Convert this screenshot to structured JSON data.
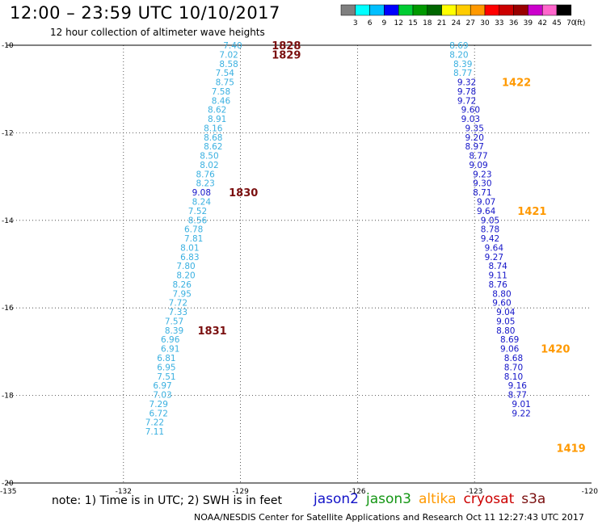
{
  "title": "12:00 – 23:59 UTC 10/10/2017",
  "subtitle": "12 hour collection of altimeter wave heights",
  "note": "note: 1) Time is in UTC; 2) SWH is in feet",
  "credit": "NOAA/NESDIS Center for Satellite Applications and Research    Oct 11 12:27:43 UTC 2017",
  "colorbar": {
    "unit": "(ft)",
    "labels": [
      "3",
      "6",
      "9",
      "12",
      "15",
      "18",
      "21",
      "24",
      "27",
      "30",
      "33",
      "36",
      "39",
      "42",
      "45",
      "70"
    ],
    "colors": [
      "#7f7f7f",
      "#00ffff",
      "#00bfff",
      "#0000ff",
      "#00cc33",
      "#009900",
      "#006600",
      "#ffff00",
      "#ffcc00",
      "#ff9900",
      "#ff0000",
      "#cc0000",
      "#990000",
      "#cc00cc",
      "#ff66cc",
      "#000000"
    ]
  },
  "legend": [
    {
      "label": "jason2",
      "color": "#1414c8"
    },
    {
      "label": "jason3",
      "color": "#149614"
    },
    {
      "label": "altika",
      "color": "#ff9900"
    },
    {
      "label": "cryosat",
      "color": "#cc0000"
    },
    {
      "label": "s3a",
      "color": "#7a0f0f"
    }
  ],
  "chart_data": {
    "type": "scatter",
    "title": "12:00 – 23:59 UTC 10/10/2017",
    "subtitle": "12 hour collection of altimeter wave heights",
    "xlim": [
      -135,
      -120
    ],
    "ylim": [
      -20,
      -10
    ],
    "x_ticks": [
      "-135",
      "-132",
      "-129",
      "-126",
      "-123",
      "-120"
    ],
    "y_ticks": [
      "-10",
      "-12",
      "-14",
      "-16",
      "-18",
      "-20"
    ],
    "grid": true,
    "series": [
      {
        "name": "s3a",
        "color": "#3ab0e0",
        "points": [
          {
            "lon": -129.2,
            "lat": -10.0,
            "v": "7.40"
          },
          {
            "lon": -129.3,
            "lat": -10.21,
            "v": "7.02"
          },
          {
            "lon": -129.3,
            "lat": -10.42,
            "v": "8.58"
          },
          {
            "lon": -129.4,
            "lat": -10.63,
            "v": "7.54"
          },
          {
            "lon": -129.4,
            "lat": -10.84,
            "v": "8.75"
          },
          {
            "lon": -129.5,
            "lat": -11.05,
            "v": "7.58"
          },
          {
            "lon": -129.5,
            "lat": -11.26,
            "v": "8.46"
          },
          {
            "lon": -129.6,
            "lat": -11.47,
            "v": "8.62"
          },
          {
            "lon": -129.6,
            "lat": -11.68,
            "v": "8.91"
          },
          {
            "lon": -129.7,
            "lat": -11.89,
            "v": "8.16"
          },
          {
            "lon": -129.7,
            "lat": -12.1,
            "v": "8.68"
          },
          {
            "lon": -129.7,
            "lat": -12.31,
            "v": "8.62"
          },
          {
            "lon": -129.8,
            "lat": -12.52,
            "v": "8.50"
          },
          {
            "lon": -129.8,
            "lat": -12.73,
            "v": "8.02"
          },
          {
            "lon": -129.9,
            "lat": -12.94,
            "v": "8.76"
          },
          {
            "lon": -129.9,
            "lat": -13.15,
            "v": "8.23"
          },
          {
            "lon": -130.0,
            "lat": -13.36,
            "v": "9.08",
            "color": "#1414c8"
          },
          {
            "lon": -130.0,
            "lat": -13.57,
            "v": "8.24"
          },
          {
            "lon": -130.1,
            "lat": -13.78,
            "v": "7.52"
          },
          {
            "lon": -130.1,
            "lat": -13.99,
            "v": "8.56"
          },
          {
            "lon": -130.2,
            "lat": -14.2,
            "v": "6.78"
          },
          {
            "lon": -130.2,
            "lat": -14.41,
            "v": "7.81"
          },
          {
            "lon": -130.3,
            "lat": -14.62,
            "v": "8.01"
          },
          {
            "lon": -130.3,
            "lat": -14.83,
            "v": "6.83"
          },
          {
            "lon": -130.4,
            "lat": -15.04,
            "v": "7.80"
          },
          {
            "lon": -130.4,
            "lat": -15.25,
            "v": "8.20"
          },
          {
            "lon": -130.5,
            "lat": -15.46,
            "v": "8.26"
          },
          {
            "lon": -130.5,
            "lat": -15.67,
            "v": "7.95"
          },
          {
            "lon": -130.6,
            "lat": -15.88,
            "v": "7.72"
          },
          {
            "lon": -130.6,
            "lat": -16.09,
            "v": "7.33"
          },
          {
            "lon": -130.7,
            "lat": -16.3,
            "v": "7.57"
          },
          {
            "lon": -130.7,
            "lat": -16.51,
            "v": "8.39"
          },
          {
            "lon": -130.8,
            "lat": -16.72,
            "v": "6.96"
          },
          {
            "lon": -130.8,
            "lat": -16.93,
            "v": "6.91"
          },
          {
            "lon": -130.9,
            "lat": -17.14,
            "v": "6.81"
          },
          {
            "lon": -130.9,
            "lat": -17.35,
            "v": "6.95"
          },
          {
            "lon": -130.9,
            "lat": -17.56,
            "v": "7.51"
          },
          {
            "lon": -131.0,
            "lat": -17.77,
            "v": "6.97"
          },
          {
            "lon": -131.0,
            "lat": -17.98,
            "v": "7.03"
          },
          {
            "lon": -131.1,
            "lat": -18.19,
            "v": "7.29"
          },
          {
            "lon": -131.1,
            "lat": -18.4,
            "v": "6.72"
          },
          {
            "lon": -131.2,
            "lat": -18.61,
            "v": "7.22"
          },
          {
            "lon": -131.2,
            "lat": -18.82,
            "v": "7.11"
          }
        ]
      },
      {
        "name": "altika",
        "color": "#1414c8",
        "points": [
          {
            "lon": -123.4,
            "lat": -10.0,
            "v": "8.69",
            "color": "#3ab0e0"
          },
          {
            "lon": -123.4,
            "lat": -10.21,
            "v": "8.20",
            "color": "#3ab0e0"
          },
          {
            "lon": -123.3,
            "lat": -10.42,
            "v": "8.39",
            "color": "#3ab0e0"
          },
          {
            "lon": -123.3,
            "lat": -10.63,
            "v": "8.77",
            "color": "#3ab0e0"
          },
          {
            "lon": -123.2,
            "lat": -10.84,
            "v": "9.32"
          },
          {
            "lon": -123.2,
            "lat": -11.05,
            "v": "9.78"
          },
          {
            "lon": -123.2,
            "lat": -11.26,
            "v": "9.72"
          },
          {
            "lon": -123.1,
            "lat": -11.47,
            "v": "9.60"
          },
          {
            "lon": -123.1,
            "lat": -11.68,
            "v": "9.03"
          },
          {
            "lon": -123.0,
            "lat": -11.89,
            "v": "9.35"
          },
          {
            "lon": -123.0,
            "lat": -12.1,
            "v": "9.20"
          },
          {
            "lon": -123.0,
            "lat": -12.31,
            "v": "8.97"
          },
          {
            "lon": -122.9,
            "lat": -12.52,
            "v": "8.77"
          },
          {
            "lon": -122.9,
            "lat": -12.73,
            "v": "9.09"
          },
          {
            "lon": -122.8,
            "lat": -12.94,
            "v": "9.23"
          },
          {
            "lon": -122.8,
            "lat": -13.15,
            "v": "9.30"
          },
          {
            "lon": -122.8,
            "lat": -13.36,
            "v": "8.71"
          },
          {
            "lon": -122.7,
            "lat": -13.57,
            "v": "9.07"
          },
          {
            "lon": -122.7,
            "lat": -13.78,
            "v": "9.64"
          },
          {
            "lon": -122.6,
            "lat": -13.99,
            "v": "9.05"
          },
          {
            "lon": -122.6,
            "lat": -14.2,
            "v": "8.78"
          },
          {
            "lon": -122.6,
            "lat": -14.41,
            "v": "9.42"
          },
          {
            "lon": -122.5,
            "lat": -14.62,
            "v": "9.64"
          },
          {
            "lon": -122.5,
            "lat": -14.83,
            "v": "9.27"
          },
          {
            "lon": -122.4,
            "lat": -15.04,
            "v": "8.74"
          },
          {
            "lon": -122.4,
            "lat": -15.25,
            "v": "9.11"
          },
          {
            "lon": -122.4,
            "lat": -15.46,
            "v": "8.76"
          },
          {
            "lon": -122.3,
            "lat": -15.67,
            "v": "8.80"
          },
          {
            "lon": -122.3,
            "lat": -15.88,
            "v": "9.60"
          },
          {
            "lon": -122.2,
            "lat": -16.09,
            "v": "9.04"
          },
          {
            "lon": -122.2,
            "lat": -16.3,
            "v": "9.05"
          },
          {
            "lon": -122.2,
            "lat": -16.51,
            "v": "8.80"
          },
          {
            "lon": -122.1,
            "lat": -16.72,
            "v": "8.69"
          },
          {
            "lon": -122.1,
            "lat": -16.93,
            "v": "9.06"
          },
          {
            "lon": -122.0,
            "lat": -17.14,
            "v": "8.68"
          },
          {
            "lon": -122.0,
            "lat": -17.35,
            "v": "8.70"
          },
          {
            "lon": -122.0,
            "lat": -17.56,
            "v": "8.10"
          },
          {
            "lon": -121.9,
            "lat": -17.77,
            "v": "9.16"
          },
          {
            "lon": -121.9,
            "lat": -17.98,
            "v": "8.77"
          },
          {
            "lon": -121.8,
            "lat": -18.19,
            "v": "9.01"
          },
          {
            "lon": -121.8,
            "lat": -18.4,
            "v": "9.22"
          }
        ]
      }
    ],
    "time_labels": [
      {
        "text": "1828",
        "lon": -128.2,
        "lat": -10.0,
        "color": "#7a0f0f"
      },
      {
        "text": "1829",
        "lon": -128.2,
        "lat": -10.21,
        "color": "#7a0f0f"
      },
      {
        "text": "1830",
        "lon": -129.3,
        "lat": -13.36,
        "color": "#7a0f0f"
      },
      {
        "text": "1831",
        "lon": -130.1,
        "lat": -16.51,
        "color": "#7a0f0f"
      },
      {
        "text": "1422",
        "lon": -122.3,
        "lat": -10.84,
        "color": "#ff9900"
      },
      {
        "text": "1421",
        "lon": -121.9,
        "lat": -13.78,
        "color": "#ff9900"
      },
      {
        "text": "1420",
        "lon": -121.3,
        "lat": -16.93,
        "color": "#ff9900"
      },
      {
        "text": "1419",
        "lon": -120.9,
        "lat": -19.2,
        "color": "#ff9900"
      }
    ]
  }
}
